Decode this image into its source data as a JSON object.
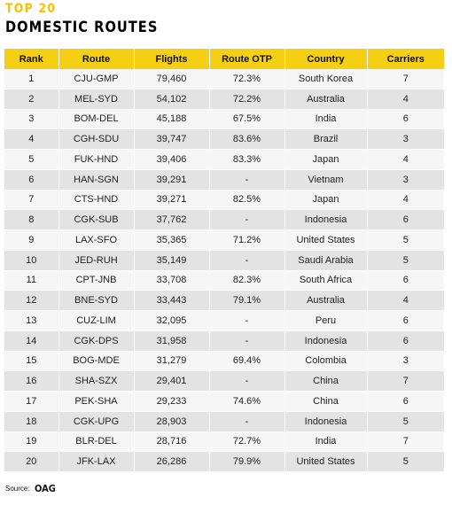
{
  "header": {
    "kicker": "TOP 20",
    "title": "DOMESTIC ROUTES"
  },
  "table": {
    "columns": [
      "Rank",
      "Route",
      "Flights",
      "Route OTP",
      "Country",
      "Carriers"
    ],
    "rows": [
      [
        "1",
        "CJU-GMP",
        "79,460",
        "72.3%",
        "South Korea",
        "7"
      ],
      [
        "2",
        "MEL-SYD",
        "54,102",
        "72.2%",
        "Australia",
        "4"
      ],
      [
        "3",
        "BOM-DEL",
        "45,188",
        "67.5%",
        "India",
        "6"
      ],
      [
        "4",
        "CGH-SDU",
        "39,747",
        "83.6%",
        "Brazil",
        "3"
      ],
      [
        "5",
        "FUK-HND",
        "39,406",
        "83.3%",
        "Japan",
        "4"
      ],
      [
        "6",
        "HAN-SGN",
        "39,291",
        "-",
        "Vietnam",
        "3"
      ],
      [
        "7",
        "CTS-HND",
        "39,271",
        "82.5%",
        "Japan",
        "4"
      ],
      [
        "8",
        "CGK-SUB",
        "37,762",
        "-",
        "Indonesia",
        "6"
      ],
      [
        "9",
        "LAX-SFO",
        "35,365",
        "71.2%",
        "United States",
        "5"
      ],
      [
        "10",
        "JED-RUH",
        "35,149",
        "-",
        "Saudi Arabia",
        "5"
      ],
      [
        "11",
        "CPT-JNB",
        "33,708",
        "82.3%",
        "South Africa",
        "6"
      ],
      [
        "12",
        "BNE-SYD",
        "33,443",
        "79.1%",
        "Australia",
        "4"
      ],
      [
        "13",
        "CUZ-LIM",
        "32,095",
        "-",
        "Peru",
        "6"
      ],
      [
        "14",
        "CGK-DPS",
        "31,958",
        "-",
        "Indonesia",
        "6"
      ],
      [
        "15",
        "BOG-MDE",
        "31,279",
        "69.4%",
        "Colombia",
        "3"
      ],
      [
        "16",
        "SHA-SZX",
        "29,401",
        "-",
        "China",
        "7"
      ],
      [
        "17",
        "PEK-SHA",
        "29,233",
        "74.6%",
        "China",
        "6"
      ],
      [
        "18",
        "CGK-UPG",
        "28,903",
        "-",
        "Indonesia",
        "5"
      ],
      [
        "19",
        "BLR-DEL",
        "28,716",
        "72.7%",
        "India",
        "7"
      ],
      [
        "20",
        "JFK-LAX",
        "26,286",
        "79.9%",
        "United States",
        "5"
      ]
    ]
  },
  "footer": {
    "source_label": "Source:",
    "source_name": "OAG"
  },
  "colors": {
    "header_background": "#f5cf14",
    "kicker_text": "#f2c200",
    "row_light": "#f6f6f6",
    "row_dark": "#e3e3e3"
  }
}
